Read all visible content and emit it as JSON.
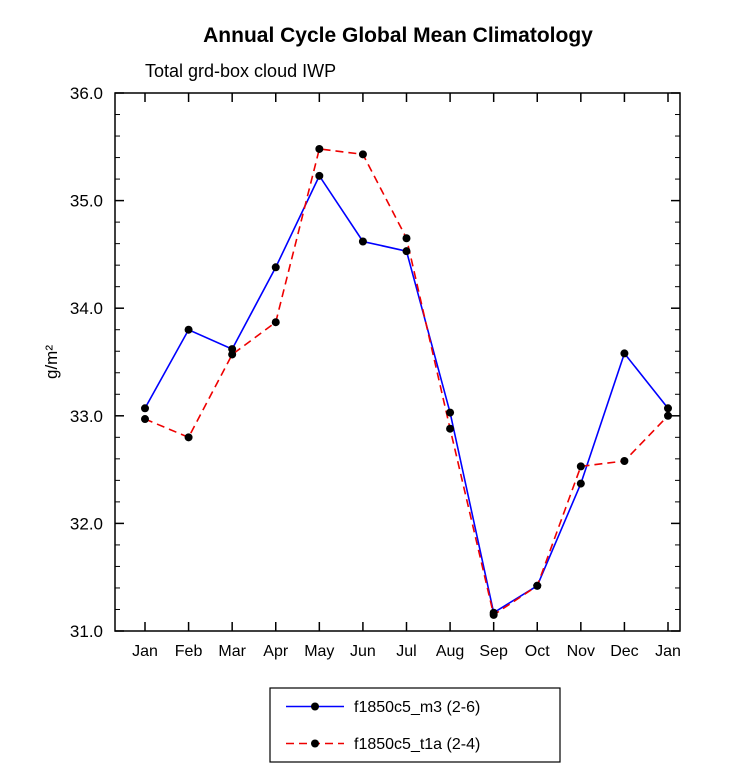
{
  "chart_data": {
    "type": "line",
    "title": "Annual Cycle Global Mean Climatology",
    "subtitle": "Total grd-box cloud IWP",
    "ylabel": "g/m²",
    "xlabel": "",
    "categories": [
      "Jan",
      "Feb",
      "Mar",
      "Apr",
      "May",
      "Jun",
      "Jul",
      "Aug",
      "Sep",
      "Oct",
      "Nov",
      "Dec",
      "Jan"
    ],
    "ylim": [
      31.0,
      36.0
    ],
    "ytick_interval": 1.0,
    "yminor_interval": 0.2,
    "ytick_labels": [
      "31.0",
      "32.0",
      "33.0",
      "34.0",
      "35.0",
      "36.0"
    ],
    "grid": false,
    "legend_position": "bottom-center",
    "marker": "filled-circle",
    "marker_color": "#000000",
    "series": [
      {
        "name": "f1850c5_m3 (2-6)",
        "color": "#0000ff",
        "line_style": "solid",
        "values": [
          33.07,
          33.8,
          33.62,
          34.38,
          35.23,
          34.62,
          34.53,
          33.03,
          31.17,
          31.42,
          32.37,
          33.58,
          33.07
        ]
      },
      {
        "name": "f1850c5_t1a (2-4)",
        "color": "#ee0000",
        "line_style": "dashed",
        "values": [
          32.97,
          32.8,
          33.57,
          33.87,
          35.48,
          35.43,
          34.65,
          32.88,
          31.15,
          31.42,
          32.53,
          32.58,
          33.0
        ]
      }
    ]
  }
}
